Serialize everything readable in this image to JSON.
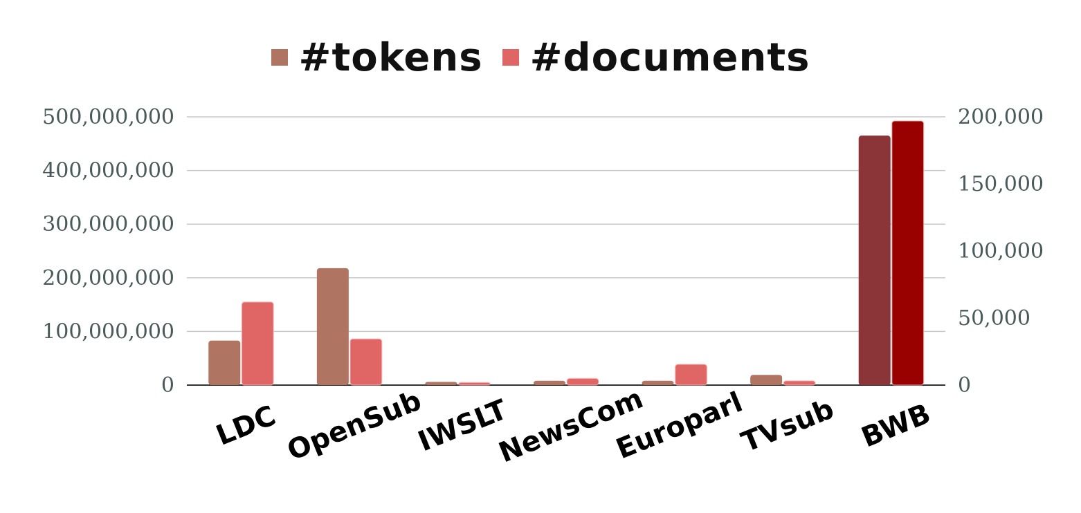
{
  "chart_data": {
    "type": "bar",
    "categories": [
      "LDC",
      "OpenSub",
      "IWSLT",
      "NewsCom",
      "Europarl",
      "TVsub",
      "BWB"
    ],
    "series": [
      {
        "name": "#tokens",
        "axis": "left",
        "color": "#b07562",
        "values": [
          83000000,
          218000000,
          6000000,
          8000000,
          8000000,
          19000000,
          465000000
        ],
        "highlight_colors": {
          "BWB": "#8b3538"
        }
      },
      {
        "name": "#documents",
        "axis": "right",
        "color": "#e06666",
        "values": [
          62000,
          34500,
          2000,
          5000,
          15500,
          3200,
          197000
        ],
        "highlight_colors": {
          "BWB": "#990000"
        }
      }
    ],
    "yleft": {
      "ylim": [
        0,
        500000000
      ],
      "ticks": [
        "500,000,000",
        "400,000,000",
        "300,000,000",
        "200,000,000",
        "100,000,000",
        "0"
      ],
      "tick_values": [
        500000000,
        400000000,
        300000000,
        200000000,
        100000000,
        0
      ]
    },
    "yright": {
      "ylim": [
        0,
        200000
      ],
      "ticks": [
        "200,000",
        "150,000",
        "100,000",
        "50,000",
        "0"
      ],
      "tick_values": [
        200000,
        150000,
        100000,
        50000,
        0
      ]
    },
    "title": "",
    "xlabel": "",
    "ylabel": "",
    "grid": true,
    "legend": "top-center"
  }
}
